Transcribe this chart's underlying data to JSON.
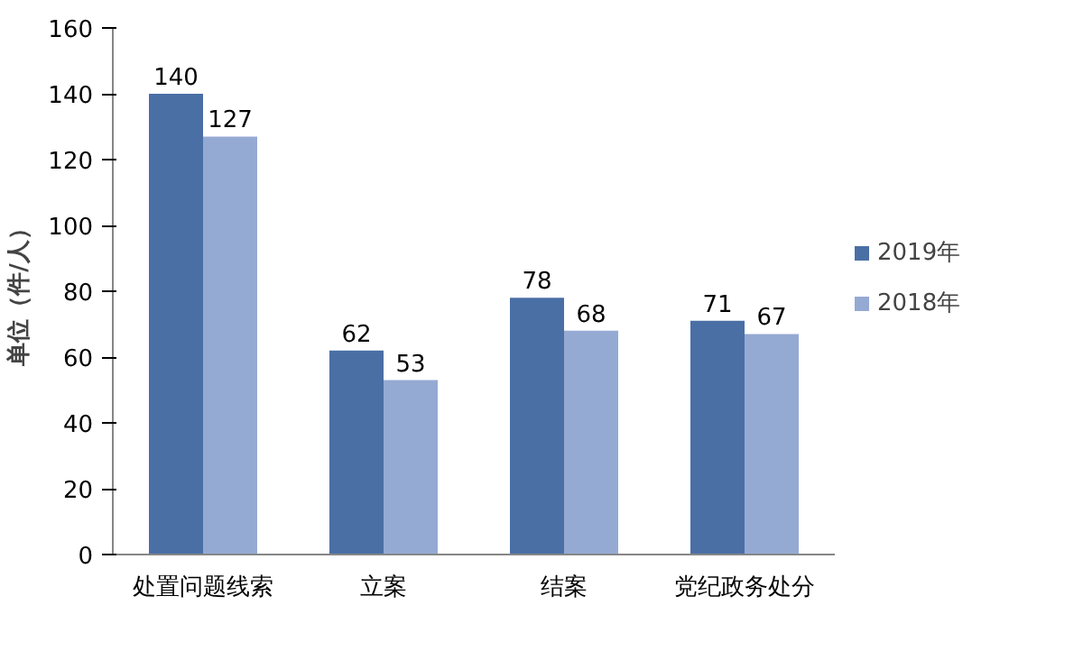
{
  "chart_data": {
    "type": "bar",
    "ylabel": "单位（件/人）",
    "categories": [
      "处置问题线索",
      "立案",
      "结案",
      "党纪政务处分"
    ],
    "series": [
      {
        "name": "2019年",
        "color": "#4a6fa5",
        "values": [
          140,
          62,
          78,
          71
        ]
      },
      {
        "name": "2018年",
        "color": "#95aad3",
        "values": [
          127,
          53,
          68,
          67
        ]
      }
    ],
    "ylim": [
      0,
      160
    ],
    "yticks": [
      0,
      20,
      40,
      60,
      80,
      100,
      120,
      140,
      160
    ],
    "data_labels": true,
    "legend": "right",
    "grid": false
  }
}
